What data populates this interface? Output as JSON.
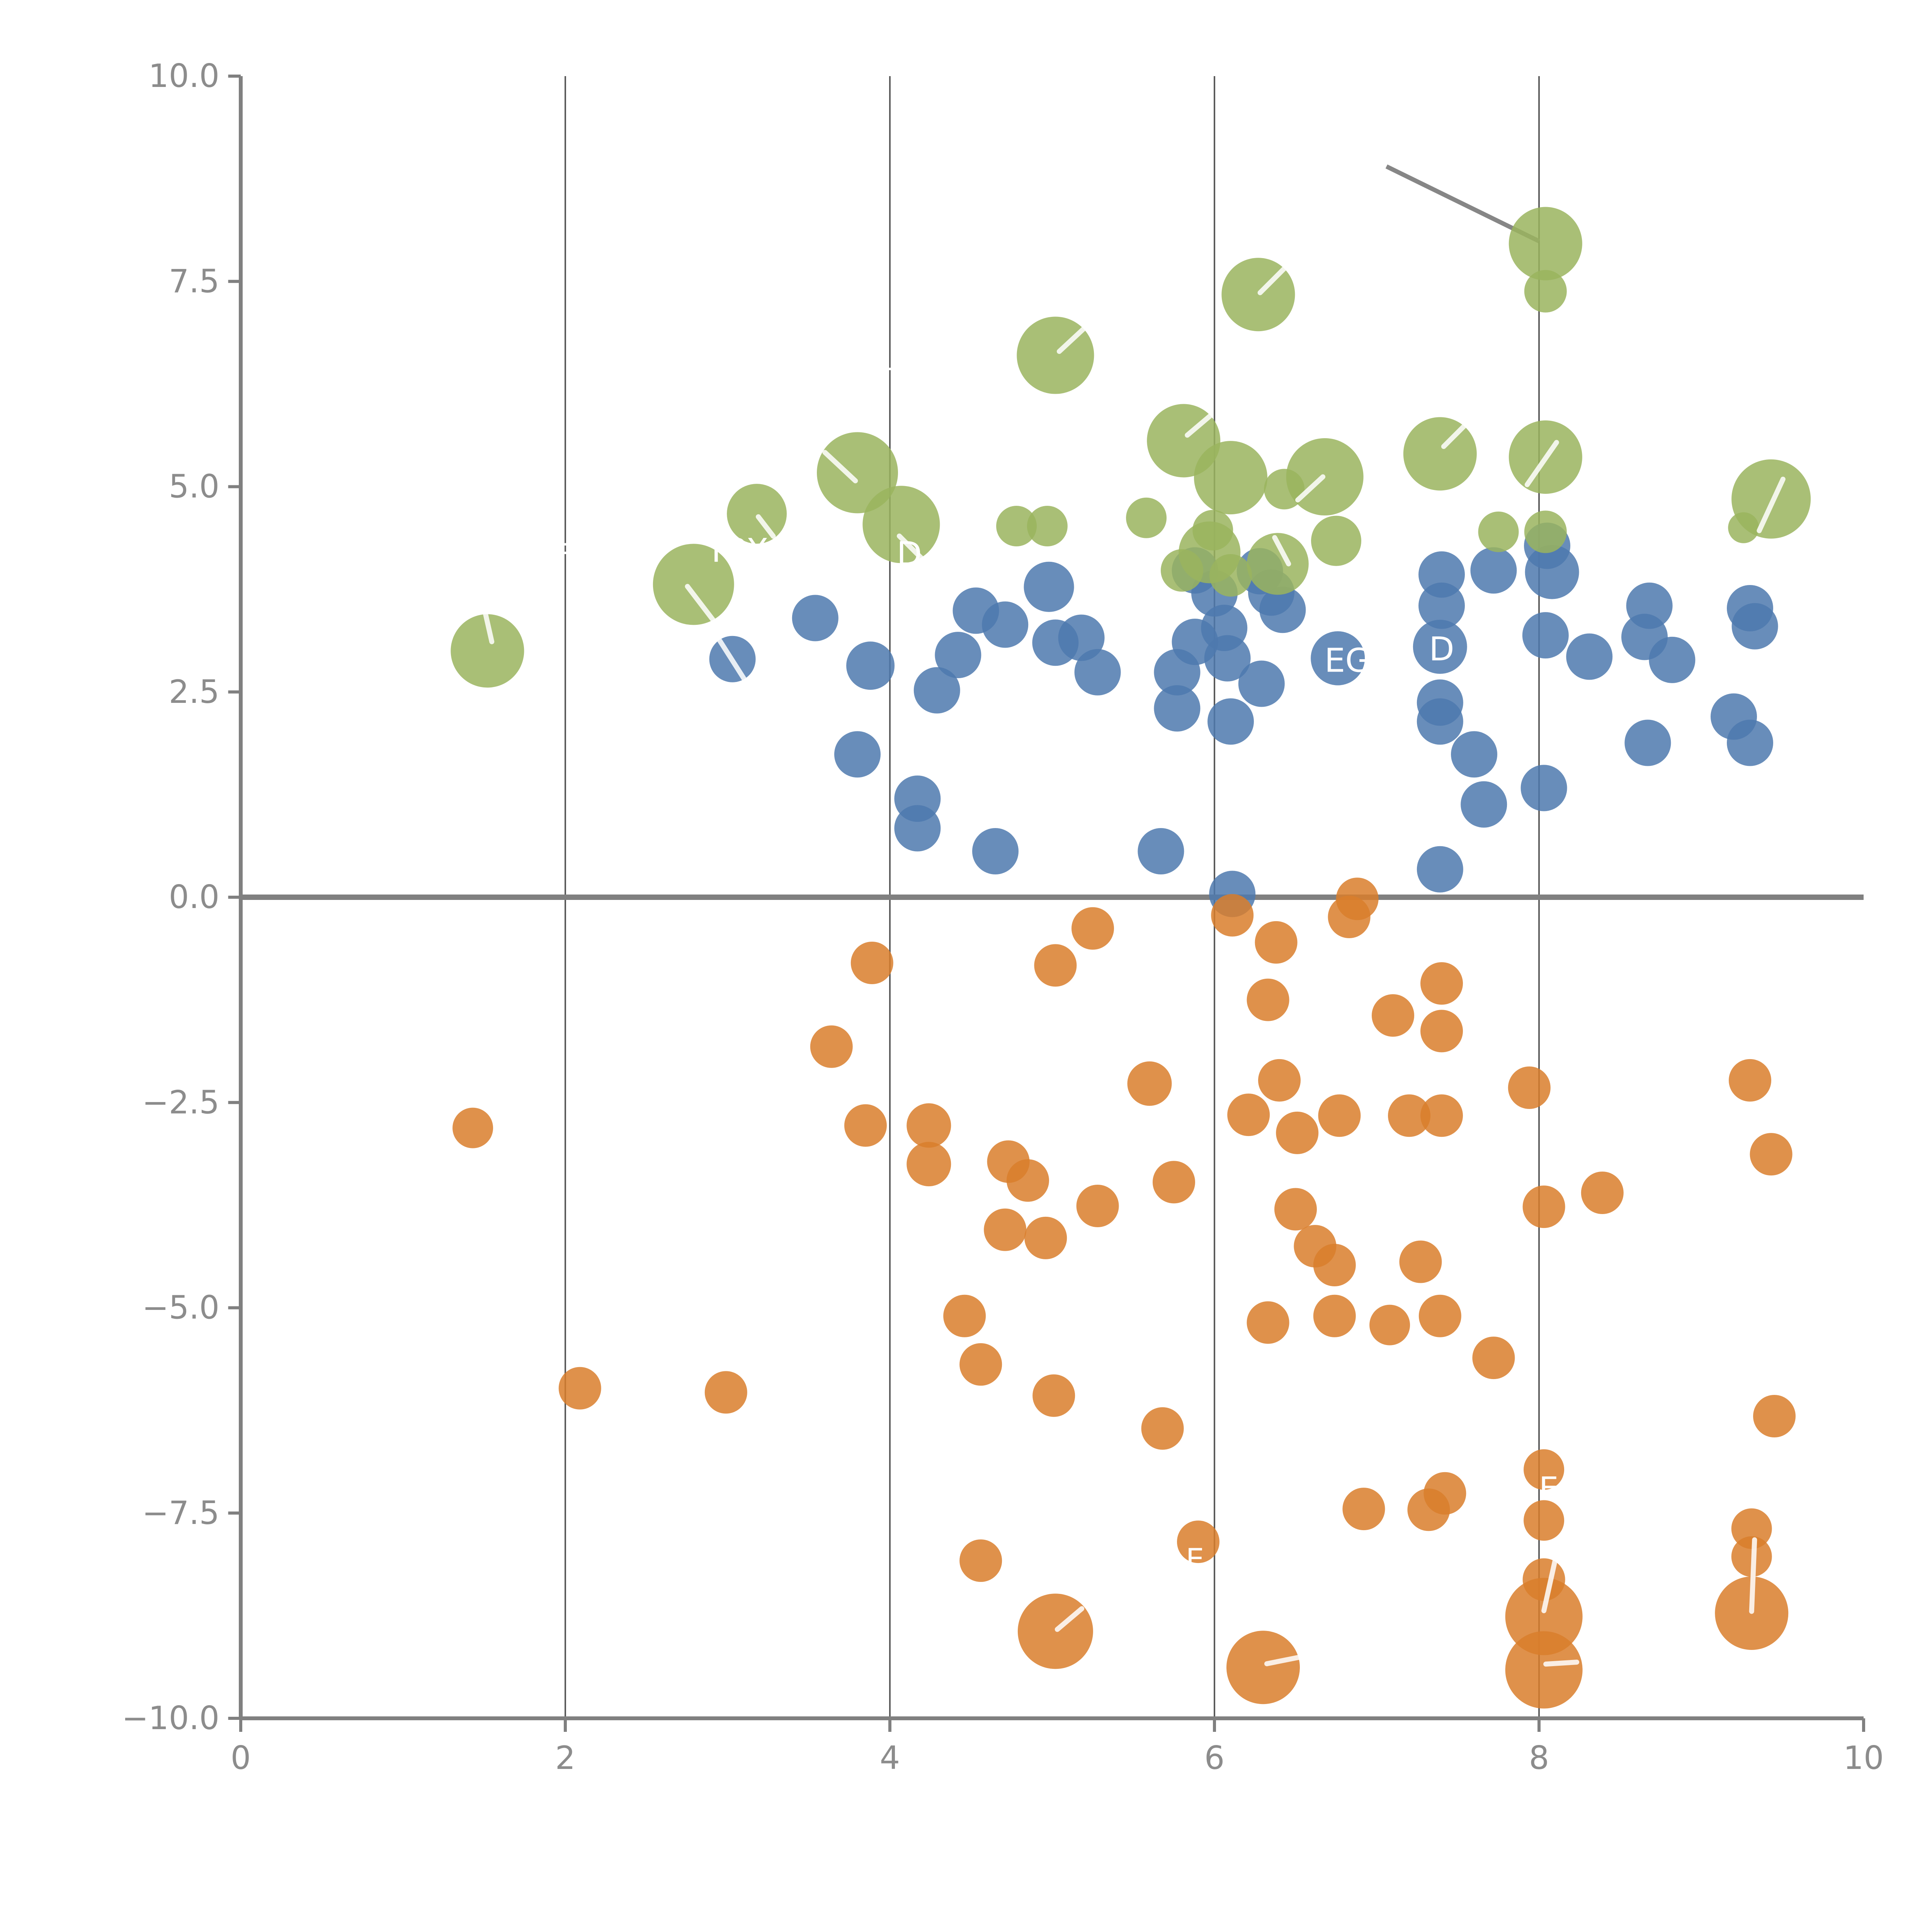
{
  "chart_data": {
    "type": "scatter",
    "title": "",
    "xlabel": "",
    "ylabel": "",
    "xlim": [
      0,
      10
    ],
    "ylim": [
      -10,
      10
    ],
    "x_ticks": [
      "0",
      "2",
      "4",
      "6",
      "8",
      "10"
    ],
    "x_tick_values": [
      0,
      2,
      4,
      6,
      8,
      10
    ],
    "y_ticks": [
      "10.0",
      "7.5",
      "5.0",
      "2.5",
      "0.0",
      "−2.5",
      "−5.0",
      "−7.5",
      "−10.0"
    ],
    "y_tick_values": [
      10,
      7.5,
      5,
      2.5,
      0,
      -2.5,
      -5,
      -7.5,
      -10
    ],
    "grid_x_values": [
      2,
      4,
      6,
      8
    ],
    "zero_line_y": 0,
    "legend": "none",
    "colors": {
      "green": "#9ab45e",
      "blue": "#4e79ae",
      "orange": "#d97e2c",
      "axis": "#808080",
      "grid": "#4a4a4a",
      "tick_label": "#8c8c8c",
      "leader": "#ffffff",
      "annotation_line": "#808080"
    },
    "annotation_line": {
      "x1": 7.06,
      "y1": 8.9,
      "x2": 8.0,
      "y2": 7.99
    },
    "series": [
      {
        "name": "blue",
        "points": [
          {
            "x": 3.03,
            "y": 2.9,
            "r": 12,
            "slash": [
              -0.55,
              -0.8,
              0.5,
              0.85
            ]
          },
          {
            "x": 3.54,
            "y": 3.4,
            "r": 12
          },
          {
            "x": 3.88,
            "y": 2.82,
            "r": 12.5
          },
          {
            "x": 3.8,
            "y": 1.74,
            "r": 12
          },
          {
            "x": 4.29,
            "y": 2.52,
            "r": 12
          },
          {
            "x": 4.42,
            "y": 2.95,
            "r": 12
          },
          {
            "x": 4.53,
            "y": 3.49,
            "r": 12
          },
          {
            "x": 4.71,
            "y": 3.32,
            "r": 12
          },
          {
            "x": 4.98,
            "y": 3.78,
            "r": 13
          },
          {
            "x": 5.02,
            "y": 3.1,
            "r": 12
          },
          {
            "x": 5.18,
            "y": 3.16,
            "r": 12
          },
          {
            "x": 5.28,
            "y": 2.74,
            "r": 12
          },
          {
            "x": 4.17,
            "y": 1.2,
            "r": 12
          },
          {
            "x": 4.17,
            "y": 0.84,
            "r": 12
          },
          {
            "x": 4.65,
            "y": 0.56,
            "r": 12
          },
          {
            "x": 5.67,
            "y": 0.56,
            "r": 12
          },
          {
            "x": 5.77,
            "y": 2.74,
            "r": 12
          },
          {
            "x": 5.77,
            "y": 2.3,
            "r": 12
          },
          {
            "x": 6.08,
            "y": 2.91,
            "r": 12
          },
          {
            "x": 6.1,
            "y": 2.14,
            "r": 12
          },
          {
            "x": 6.29,
            "y": 2.6,
            "r": 12
          },
          {
            "x": 6.11,
            "y": 0.04,
            "r": 12
          },
          {
            "x": 5.88,
            "y": 3.98,
            "r": 12
          },
          {
            "x": 6.0,
            "y": 3.7,
            "r": 12
          },
          {
            "x": 6.28,
            "y": 3.97,
            "r": 12
          },
          {
            "x": 6.35,
            "y": 3.71,
            "r": 12
          },
          {
            "x": 6.42,
            "y": 3.5,
            "r": 12
          },
          {
            "x": 6.06,
            "y": 3.28,
            "r": 12
          },
          {
            "x": 5.88,
            "y": 3.11,
            "r": 12
          },
          {
            "x": 6.76,
            "y": 2.91,
            "r": 14
          },
          {
            "x": 7.39,
            "y": 3.05,
            "r": 14
          },
          {
            "x": 7.4,
            "y": 3.93,
            "r": 12
          },
          {
            "x": 7.4,
            "y": 3.55,
            "r": 12
          },
          {
            "x": 7.72,
            "y": 3.98,
            "r": 12
          },
          {
            "x": 7.39,
            "y": 2.37,
            "r": 12
          },
          {
            "x": 7.39,
            "y": 2.14,
            "r": 12
          },
          {
            "x": 7.6,
            "y": 1.74,
            "r": 12
          },
          {
            "x": 7.66,
            "y": 1.13,
            "r": 12
          },
          {
            "x": 8.03,
            "y": 1.33,
            "r": 12
          },
          {
            "x": 7.39,
            "y": 0.34,
            "r": 12
          },
          {
            "x": 8.04,
            "y": 3.19,
            "r": 12
          },
          {
            "x": 8.31,
            "y": 2.93,
            "r": 12
          },
          {
            "x": 8.65,
            "y": 3.17,
            "r": 12
          },
          {
            "x": 8.82,
            "y": 2.89,
            "r": 12
          },
          {
            "x": 8.67,
            "y": 1.88,
            "r": 12
          },
          {
            "x": 9.2,
            "y": 2.2,
            "r": 12
          },
          {
            "x": 9.3,
            "y": 1.88,
            "r": 12
          },
          {
            "x": 9.3,
            "y": 3.52,
            "r": 12
          },
          {
            "x": 9.33,
            "y": 3.3,
            "r": 12
          },
          {
            "x": 8.08,
            "y": 3.96,
            "r": 14
          },
          {
            "x": 8.05,
            "y": 4.28,
            "r": 12
          },
          {
            "x": 8.68,
            "y": 3.55,
            "r": 12
          }
        ]
      },
      {
        "name": "green",
        "points": [
          {
            "x": 1.52,
            "y": 3.0,
            "r": 19,
            "slash": [
              -0.05,
              -1.0,
              0.12,
              -0.25
            ]
          },
          {
            "x": 2.79,
            "y": 3.81,
            "r": 21,
            "slash": [
              -0.15,
              0.05,
              0.5,
              0.9
            ]
          },
          {
            "x": 3.18,
            "y": 4.67,
            "r": 15.5,
            "slash": [
              0.05,
              0.1,
              0.55,
              0.75
            ]
          },
          {
            "x": 3.8,
            "y": 5.17,
            "r": 21,
            "slash": [
              -0.8,
              -0.5,
              -0.05,
              0.2
            ]
          },
          {
            "x": 4.07,
            "y": 4.54,
            "r": 20,
            "slash": [
              -0.05,
              0.3,
              0.6,
              0.95
            ]
          },
          {
            "x": 4.78,
            "y": 4.52,
            "r": 10.5
          },
          {
            "x": 4.97,
            "y": 4.52,
            "r": 10.5
          },
          {
            "x": 5.02,
            "y": 6.6,
            "r": 20,
            "slash": [
              0.1,
              -0.1,
              0.8,
              -0.75
            ]
          },
          {
            "x": 5.58,
            "y": 4.62,
            "r": 10.5
          },
          {
            "x": 5.81,
            "y": 5.56,
            "r": 19,
            "slash": [
              0.1,
              -0.15,
              0.75,
              -0.7
            ]
          },
          {
            "x": 6.1,
            "y": 5.11,
            "r": 19
          },
          {
            "x": 5.97,
            "y": 4.2,
            "r": 16
          },
          {
            "x": 5.8,
            "y": 3.98,
            "r": 11
          },
          {
            "x": 5.99,
            "y": 4.47,
            "r": 10.5
          },
          {
            "x": 6.1,
            "y": 3.92,
            "r": 11
          },
          {
            "x": 6.27,
            "y": 7.34,
            "r": 19,
            "slash": [
              0.05,
              -0.05,
              0.7,
              -0.7
            ]
          },
          {
            "x": 6.39,
            "y": 4.06,
            "r": 16,
            "slash": [
              -0.1,
              -0.85,
              0.35,
              0.0
            ]
          },
          {
            "x": 6.43,
            "y": 4.97,
            "r": 10.5
          },
          {
            "x": 6.68,
            "y": 5.12,
            "r": 20,
            "slash": [
              -0.7,
              0.6,
              -0.05,
              0.0
            ]
          },
          {
            "x": 6.75,
            "y": 4.34,
            "r": 13
          },
          {
            "x": 7.39,
            "y": 5.4,
            "r": 19,
            "slash": [
              0.1,
              -0.2,
              0.65,
              -0.75
            ]
          },
          {
            "x": 7.75,
            "y": 4.45,
            "r": 10.5
          },
          {
            "x": 8.04,
            "y": 7.96,
            "r": 19
          },
          {
            "x": 8.04,
            "y": 7.38,
            "r": 11
          },
          {
            "x": 8.04,
            "y": 5.36,
            "r": 19,
            "slash": [
              -0.5,
              0.75,
              0.3,
              -0.4
            ]
          },
          {
            "x": 8.04,
            "y": 4.45,
            "r": 11
          },
          {
            "x": 9.26,
            "y": 4.5,
            "r": 8
          },
          {
            "x": 9.43,
            "y": 4.85,
            "r": 20.5,
            "slash": [
              -0.3,
              0.8,
              0.3,
              -0.5
            ]
          }
        ]
      },
      {
        "name": "orange",
        "points": [
          {
            "x": 1.43,
            "y": -2.81,
            "r": 10.5
          },
          {
            "x": 2.09,
            "y": -5.98,
            "r": 11
          },
          {
            "x": 2.99,
            "y": -6.03,
            "r": 11
          },
          {
            "x": 3.64,
            "y": -1.82,
            "r": 11
          },
          {
            "x": 3.85,
            "y": -2.78,
            "r": 11
          },
          {
            "x": 3.89,
            "y": -0.8,
            "r": 11
          },
          {
            "x": 4.24,
            "y": -2.78,
            "r": 11.5
          },
          {
            "x": 4.24,
            "y": -3.25,
            "r": 11.5
          },
          {
            "x": 4.46,
            "y": -5.1,
            "r": 11
          },
          {
            "x": 4.56,
            "y": -5.69,
            "r": 11
          },
          {
            "x": 4.56,
            "y": -8.08,
            "r": 11
          },
          {
            "x": 4.71,
            "y": -4.05,
            "r": 11
          },
          {
            "x": 4.96,
            "y": -4.15,
            "r": 11
          },
          {
            "x": 4.73,
            "y": -3.22,
            "r": 11
          },
          {
            "x": 4.85,
            "y": -3.45,
            "r": 11
          },
          {
            "x": 5.01,
            "y": -6.07,
            "r": 11
          },
          {
            "x": 5.02,
            "y": -8.94,
            "r": 19.5,
            "slash": [
              0.05,
              -0.05,
              0.7,
              -0.6
            ]
          },
          {
            "x": 5.25,
            "y": -0.38,
            "r": 11
          },
          {
            "x": 5.02,
            "y": -0.83,
            "r": 11
          },
          {
            "x": 5.28,
            "y": -3.76,
            "r": 11
          },
          {
            "x": 5.6,
            "y": -2.27,
            "r": 11.5
          },
          {
            "x": 5.68,
            "y": -6.47,
            "r": 11
          },
          {
            "x": 5.75,
            "y": -3.47,
            "r": 11
          },
          {
            "x": 5.9,
            "y": -7.85,
            "r": 11
          },
          {
            "x": 6.11,
            "y": -0.22,
            "r": 11
          },
          {
            "x": 6.21,
            "y": -2.65,
            "r": 11
          },
          {
            "x": 6.3,
            "y": -9.38,
            "r": 19,
            "slash": [
              0.1,
              -0.1,
              1.1,
              -0.3
            ]
          },
          {
            "x": 6.33,
            "y": -1.25,
            "r": 11
          },
          {
            "x": 6.33,
            "y": -5.18,
            "r": 11
          },
          {
            "x": 6.38,
            "y": -0.55,
            "r": 11
          },
          {
            "x": 6.4,
            "y": -2.23,
            "r": 11
          },
          {
            "x": 6.5,
            "y": -3.8,
            "r": 11
          },
          {
            "x": 6.62,
            "y": -4.25,
            "r": 11
          },
          {
            "x": 6.74,
            "y": -4.48,
            "r": 11
          },
          {
            "x": 6.74,
            "y": -5.1,
            "r": 11
          },
          {
            "x": 6.51,
            "y": -2.87,
            "r": 11
          },
          {
            "x": 6.77,
            "y": -2.66,
            "r": 11
          },
          {
            "x": 7.2,
            "y": -2.66,
            "r": 11
          },
          {
            "x": 7.4,
            "y": -2.66,
            "r": 11
          },
          {
            "x": 6.88,
            "y": -0.02,
            "r": 11
          },
          {
            "x": 6.83,
            "y": -0.24,
            "r": 11
          },
          {
            "x": 6.92,
            "y": -7.45,
            "r": 11
          },
          {
            "x": 7.1,
            "y": -1.44,
            "r": 11
          },
          {
            "x": 7.4,
            "y": -1.05,
            "r": 11
          },
          {
            "x": 7.4,
            "y": -1.63,
            "r": 11
          },
          {
            "x": 7.27,
            "y": -4.44,
            "r": 11
          },
          {
            "x": 7.08,
            "y": -5.21,
            "r": 10.5
          },
          {
            "x": 7.39,
            "y": -5.1,
            "r": 11
          },
          {
            "x": 7.72,
            "y": -5.61,
            "r": 11
          },
          {
            "x": 7.94,
            "y": -2.32,
            "r": 11
          },
          {
            "x": 8.39,
            "y": -3.6,
            "r": 11
          },
          {
            "x": 8.03,
            "y": -3.77,
            "r": 11
          },
          {
            "x": 8.03,
            "y": -6.97,
            "r": 10.5
          },
          {
            "x": 8.03,
            "y": -7.59,
            "r": 10.5
          },
          {
            "x": 8.03,
            "y": -8.31,
            "r": 11
          },
          {
            "x": 8.03,
            "y": -8.76,
            "r": 20,
            "slash": [
              0.3,
              -1.5,
              0.0,
              -0.15
            ]
          },
          {
            "x": 8.03,
            "y": -9.41,
            "r": 20,
            "slash": [
              0.05,
              -0.15,
              0.85,
              -0.2
            ]
          },
          {
            "x": 9.31,
            "y": -7.69,
            "r": 10.5
          },
          {
            "x": 9.31,
            "y": -8.03,
            "r": 10.5
          },
          {
            "x": 9.31,
            "y": -8.72,
            "r": 19,
            "slash": [
              0.08,
              -2.0,
              0.0,
              -0.05
            ]
          },
          {
            "x": 9.45,
            "y": -6.32,
            "r": 11
          },
          {
            "x": 9.3,
            "y": -2.23,
            "r": 11
          },
          {
            "x": 9.43,
            "y": -3.13,
            "r": 11
          },
          {
            "x": 7.32,
            "y": -7.46,
            "r": 11
          },
          {
            "x": 7.42,
            "y": -7.26,
            "r": 11
          }
        ]
      }
    ],
    "point_labels": [
      {
        "text": "TPX",
        "x": 3.06,
        "y": 4.22,
        "size": 17
      },
      {
        "text": "D",
        "x": 4.12,
        "y": 4.18,
        "size": 17
      },
      {
        "text": "EG",
        "x": 6.82,
        "y": 2.88,
        "size": 17
      },
      {
        "text": "D",
        "x": 7.4,
        "y": 3.02,
        "size": 17
      },
      {
        "text": "E",
        "x": 8.06,
        "y": -7.2,
        "size": 16
      },
      {
        "text": "E",
        "x": 5.88,
        "y": -8.06,
        "size": 15
      },
      {
        "text": "H",
        "x": 3.99,
        "y": 6.42,
        "size": 15
      },
      {
        "text": "F",
        "x": 1.99,
        "y": 4.18,
        "size": 15
      }
    ]
  }
}
